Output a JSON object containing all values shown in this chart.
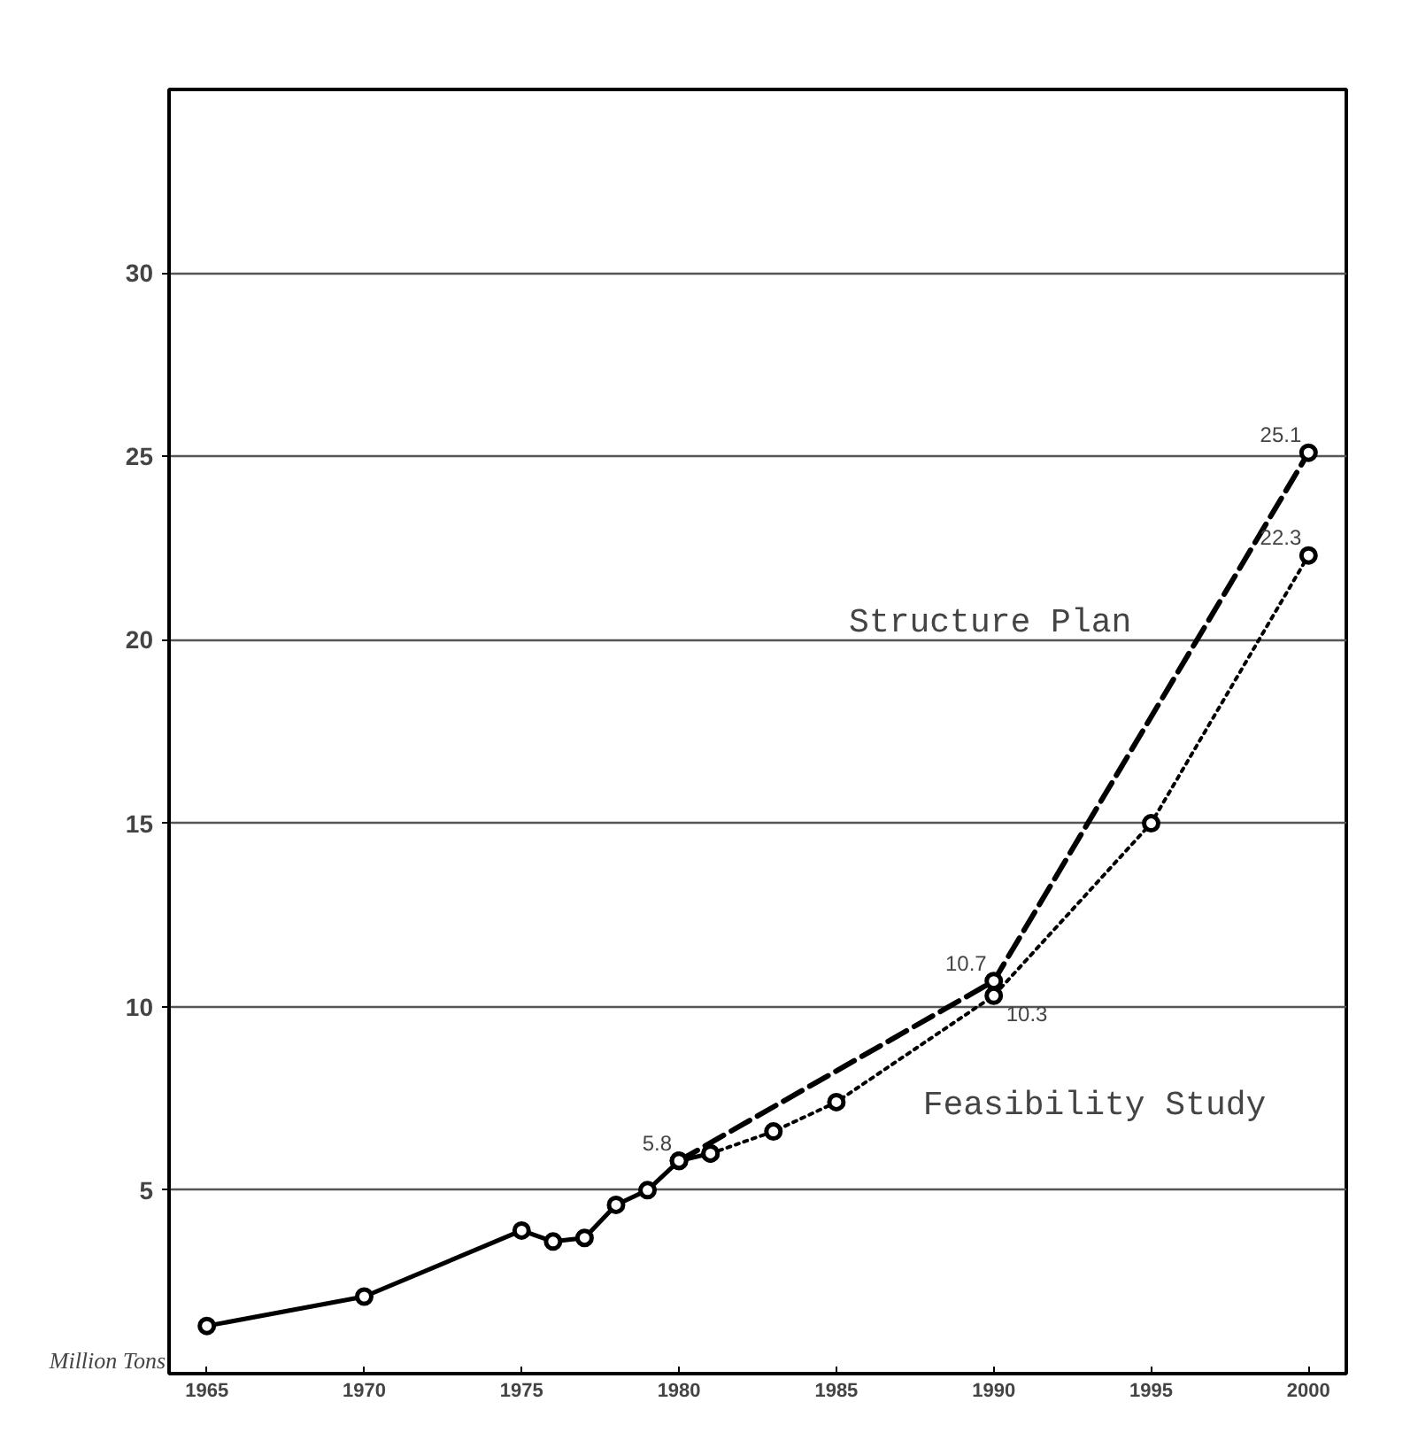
{
  "chart_data": {
    "type": "line",
    "ylabel": "Million Tons",
    "x": [
      1965,
      1970,
      1975,
      1976,
      1977,
      1978,
      1979,
      1980,
      1981
    ],
    "series": [
      {
        "values": [
          1.3,
          2.1,
          3.9,
          3.6,
          3.7,
          4.6,
          5.0,
          5.8,
          6.0
        ],
        "color": "#000000",
        "line_style": "solid",
        "value_labels": [
          null,
          null,
          null,
          null,
          null,
          null,
          null,
          "5.8",
          null
        ]
      },
      {
        "name": "Structure Plan",
        "x": [
          1980,
          1990,
          2000
        ],
        "values": [
          5.8,
          10.7,
          25.1
        ],
        "color": "#000000",
        "line_style": "dashed",
        "value_labels": [
          null,
          "10.7",
          "25.1"
        ]
      },
      {
        "name": "Feasibility Study",
        "x": [
          1981,
          1983,
          1985,
          1990,
          1995,
          2000
        ],
        "values": [
          6.0,
          6.6,
          7.4,
          10.3,
          15.0,
          22.3
        ],
        "color": "#000000",
        "line_style": "dotted",
        "value_labels": [
          null,
          null,
          null,
          "10.3",
          null,
          "22.3"
        ]
      }
    ],
    "xlim": [
      1963.8,
      2001.2
    ],
    "ylim": [
      0,
      35
    ],
    "xticks": [
      1965,
      1970,
      1975,
      1980,
      1985,
      1990,
      1995,
      2000
    ],
    "yticks": [
      5,
      10,
      15,
      20,
      25,
      30
    ],
    "grid": "y",
    "marker": "circle"
  }
}
